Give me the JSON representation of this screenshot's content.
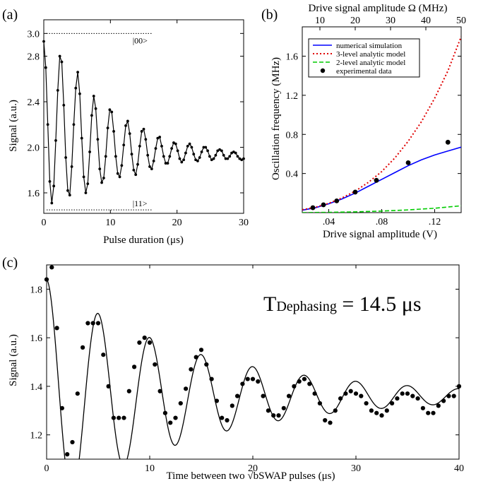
{
  "panels": {
    "a": {
      "label": "(a)"
    },
    "b": {
      "label": "(b)"
    },
    "c": {
      "label": "(c)",
      "annotation_main": "T",
      "annotation_sub": "Dephasing",
      "annotation_rest": " = 14.5 μs"
    }
  },
  "colors": {
    "axis": "#000000",
    "numerical": "#0000ff",
    "three_level": "#e00000",
    "two_level": "#00cc00",
    "points": "#000000"
  },
  "chart_data": [
    {
      "id": "a",
      "type": "line",
      "title": "",
      "xlabel": "Pulse duration (μs)",
      "ylabel": "Signal (a.u.)",
      "xlim": [
        0,
        30
      ],
      "ylim": [
        1.42,
        3.12
      ],
      "xticks": [
        0,
        10,
        20,
        30
      ],
      "yticks": [
        1.6,
        2.0,
        2.4,
        2.8,
        3.0
      ],
      "yticklabels": [
        "1.6",
        "2.0",
        "2.4",
        "2.8",
        "3.0"
      ],
      "reference_lines": [
        {
          "name": "|00>",
          "y": 3.0,
          "x_end": 16.3
        },
        {
          "name": "|11>",
          "y": 1.45,
          "x_end": 16.3
        }
      ],
      "series": [
        {
          "style": "line-with-markers",
          "x": [
            0,
            0.3,
            0.6,
            0.9,
            1.2,
            1.5,
            1.8,
            2.1,
            2.4,
            2.7,
            3.0,
            3.3,
            3.6,
            3.9,
            4.2,
            4.5,
            4.8,
            5.1,
            5.4,
            5.7,
            6.0,
            6.3,
            6.6,
            6.9,
            7.2,
            7.5,
            7.8,
            8.1,
            8.4,
            8.7,
            9.0,
            9.3,
            9.6,
            9.9,
            10.2,
            10.5,
            10.8,
            11.1,
            11.4,
            11.7,
            12.0,
            12.3,
            12.6,
            12.9,
            13.2,
            13.5,
            13.8,
            14.1,
            14.4,
            14.7,
            15.0,
            15.3,
            15.6,
            15.9,
            16.2,
            16.5,
            16.8,
            17.1,
            17.4,
            17.7,
            18.0,
            18.3,
            18.6,
            18.9,
            19.2,
            19.5,
            19.8,
            20.1,
            20.4,
            20.7,
            21.0,
            21.3,
            21.6,
            21.9,
            22.2,
            22.5,
            22.8,
            23.1,
            23.4,
            23.7,
            24.0,
            24.3,
            24.6,
            24.9,
            25.2,
            25.5,
            25.8,
            26.1,
            26.4,
            26.7,
            27.0,
            27.3,
            27.6,
            27.9,
            28.2,
            28.5,
            28.8,
            29.1,
            29.4,
            29.7,
            30.0
          ],
          "y": [
            2.93,
            2.7,
            2.2,
            1.7,
            1.51,
            1.66,
            2.06,
            2.5,
            2.8,
            2.75,
            2.37,
            1.91,
            1.62,
            1.58,
            1.83,
            2.2,
            2.52,
            2.66,
            2.47,
            2.08,
            1.74,
            1.6,
            1.68,
            1.96,
            2.28,
            2.45,
            2.34,
            2.07,
            1.81,
            1.69,
            1.73,
            1.92,
            2.17,
            2.33,
            2.31,
            2.14,
            1.92,
            1.77,
            1.74,
            1.84,
            2.02,
            2.19,
            2.23,
            2.12,
            1.94,
            1.8,
            1.76,
            1.85,
            2.01,
            2.14,
            2.16,
            2.07,
            1.93,
            1.83,
            1.81,
            1.88,
            1.99,
            2.08,
            2.09,
            2.01,
            1.92,
            1.86,
            1.86,
            1.92,
            1.99,
            2.04,
            2.03,
            1.97,
            1.9,
            1.87,
            1.89,
            1.95,
            2.01,
            2.03,
            2.0,
            1.94,
            1.89,
            1.88,
            1.91,
            1.96,
            2.0,
            2.0,
            1.97,
            1.92,
            1.89,
            1.9,
            1.93,
            1.97,
            1.98,
            1.97,
            1.93,
            1.9,
            1.9,
            1.92,
            1.95,
            1.96,
            1.95,
            1.92,
            1.9,
            1.89,
            1.9
          ]
        }
      ]
    },
    {
      "id": "b",
      "type": "line",
      "title": "Drive signal amplitude Ω (MHz)",
      "xlabel": "Drive signal amplitude (V)",
      "ylabel": "Oscillation frequency (MHz)",
      "xlim": [
        0.02,
        0.14
      ],
      "ylim": [
        0.0,
        1.9
      ],
      "xticks": [
        0.04,
        0.08,
        0.12
      ],
      "yticks": [
        0.4,
        0.8,
        1.2,
        1.6
      ],
      "top_axis": {
        "lim": [
          5,
          50
        ],
        "ticks": [
          10,
          20,
          30,
          40,
          50
        ]
      },
      "legend": {
        "placement": "top-left"
      },
      "series": [
        {
          "name": "numerical simulation",
          "style": "solid",
          "x": [
            0.02,
            0.03,
            0.04,
            0.05,
            0.06,
            0.07,
            0.08,
            0.09,
            0.1,
            0.11,
            0.12,
            0.13,
            0.14
          ],
          "y": [
            0.025,
            0.05,
            0.09,
            0.14,
            0.2,
            0.27,
            0.34,
            0.41,
            0.48,
            0.54,
            0.59,
            0.63,
            0.67
          ]
        },
        {
          "name": "3-level analytic model",
          "style": "dotted",
          "x": [
            0.02,
            0.03,
            0.04,
            0.05,
            0.06,
            0.07,
            0.08,
            0.09,
            0.1,
            0.11,
            0.12,
            0.13,
            0.14
          ],
          "y": [
            0.03,
            0.055,
            0.095,
            0.15,
            0.22,
            0.31,
            0.42,
            0.56,
            0.73,
            0.93,
            1.17,
            1.45,
            1.8
          ]
        },
        {
          "name": "2-level analytic model",
          "style": "dashed",
          "x": [
            0.02,
            0.04,
            0.06,
            0.08,
            0.1,
            0.12,
            0.14
          ],
          "y": [
            0.0,
            0.003,
            0.008,
            0.016,
            0.028,
            0.045,
            0.07
          ]
        },
        {
          "name": "experimental data",
          "style": "markers",
          "x": [
            0.028,
            0.036,
            0.046,
            0.06,
            0.076,
            0.1,
            0.13
          ],
          "y": [
            0.05,
            0.08,
            0.12,
            0.21,
            0.33,
            0.51,
            0.72
          ]
        }
      ]
    },
    {
      "id": "c",
      "type": "scatter",
      "title": "",
      "xlabel": "Time between two √bSWAP pulses (μs)",
      "ylabel": "Signal (a.u.)",
      "xlim": [
        0,
        40
      ],
      "ylim": [
        1.1,
        1.9
      ],
      "xticks": [
        0,
        10,
        20,
        30,
        40
      ],
      "yticks": [
        1.2,
        1.4,
        1.6,
        1.8
      ],
      "fit_model": {
        "y0": 1.36,
        "amp": 0.48,
        "t2": 14.5,
        "period": 5.0
      },
      "series": [
        {
          "style": "markers",
          "x": [
            0,
            0.5,
            1.0,
            1.5,
            2.0,
            2.5,
            3.0,
            3.5,
            4.0,
            4.5,
            5.0,
            5.5,
            6.0,
            6.5,
            7.0,
            7.5,
            8.0,
            8.5,
            9.0,
            9.5,
            10.0,
            10.5,
            11.0,
            11.5,
            12.0,
            12.5,
            13.0,
            13.5,
            14.0,
            14.5,
            15.0,
            15.5,
            16.0,
            16.5,
            17.0,
            17.5,
            18.0,
            18.5,
            19.0,
            19.5,
            20.0,
            20.5,
            21.0,
            21.5,
            22.0,
            22.5,
            23.0,
            23.5,
            24.0,
            24.5,
            25.0,
            25.5,
            26.0,
            26.5,
            27.0,
            27.5,
            28.0,
            28.5,
            29.0,
            29.5,
            30.0,
            30.5,
            31.0,
            31.5,
            32.0,
            32.5,
            33.0,
            33.5,
            34.0,
            34.5,
            35.0,
            35.5,
            36.0,
            36.5,
            37.0,
            37.5,
            38.0,
            38.5,
            39.0,
            39.5,
            40.0
          ],
          "y": [
            1.84,
            1.89,
            1.64,
            1.31,
            1.12,
            1.17,
            1.37,
            1.56,
            1.66,
            1.66,
            1.66,
            1.53,
            1.4,
            1.27,
            1.27,
            1.27,
            1.38,
            1.48,
            1.58,
            1.6,
            1.58,
            1.49,
            1.38,
            1.29,
            1.25,
            1.27,
            1.33,
            1.39,
            1.47,
            1.52,
            1.55,
            1.49,
            1.43,
            1.34,
            1.27,
            1.26,
            1.32,
            1.36,
            1.41,
            1.43,
            1.43,
            1.42,
            1.36,
            1.3,
            1.28,
            1.28,
            1.31,
            1.36,
            1.4,
            1.42,
            1.43,
            1.41,
            1.37,
            1.33,
            1.26,
            1.25,
            1.3,
            1.35,
            1.37,
            1.38,
            1.37,
            1.36,
            1.33,
            1.3,
            1.29,
            1.28,
            1.3,
            1.33,
            1.35,
            1.37,
            1.37,
            1.36,
            1.35,
            1.31,
            1.29,
            1.29,
            1.32,
            1.34,
            1.36,
            1.36,
            1.4
          ]
        }
      ]
    }
  ]
}
